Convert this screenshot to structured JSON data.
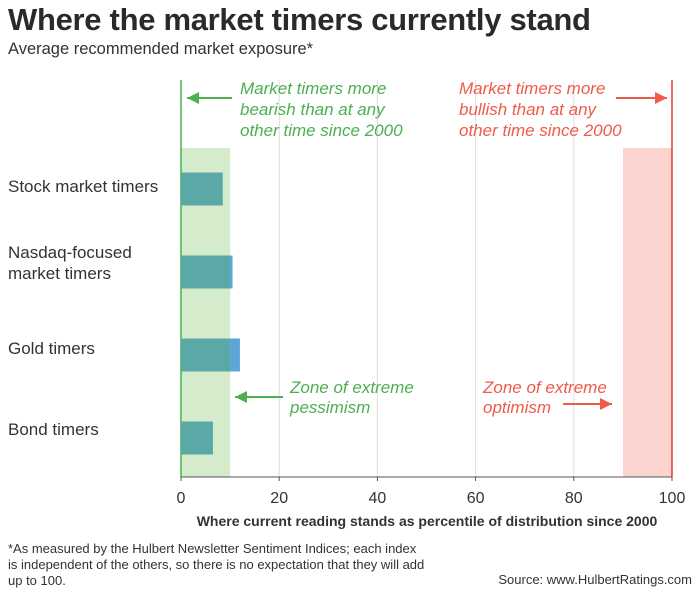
{
  "header": {
    "title": "Where the market timers currently stand",
    "subtitle": "Average recommended market exposure*"
  },
  "chart_data": {
    "type": "bar",
    "orientation": "horizontal",
    "categories": [
      "Stock market timers",
      "Nasdaq-focused\nmarket timers",
      "Gold timers",
      "Bond timers"
    ],
    "values": [
      8.5,
      10.5,
      12,
      6.5
    ],
    "xlabel": "Where current reading stands as percentile of distribution since 2000",
    "xlim": [
      0,
      100
    ],
    "xticks": [
      0,
      20,
      40,
      60,
      80,
      100
    ],
    "grid": "vertical",
    "zones": [
      {
        "range": [
          0,
          10
        ],
        "color": "#d4eccb",
        "label": "Zone of extreme\npessimism",
        "label_color": "#4caf50"
      },
      {
        "range": [
          90,
          100
        ],
        "color": "#fbd3cf",
        "label": "Zone of extreme\noptimism",
        "label_color": "#f05a48"
      }
    ],
    "annotations": [
      {
        "text": "Market timers more\nbearish than at any\nother time since 2000",
        "color": "#4caf50",
        "arrow": "left"
      },
      {
        "text": "Market timers more\nbullish than at any\nother time since 2000",
        "color": "#f05a48",
        "arrow": "right"
      }
    ],
    "colors": {
      "bar": "#5aa9a6",
      "bar_highlight": "#5ba6d6",
      "green_line": "#4caf50",
      "red_line": "#e53935",
      "grid": "#dddddd",
      "axis": "#555555"
    }
  },
  "footer": {
    "footnote": "*As measured by the Hulbert Newsletter Sentiment Indices; each index is independent of the others, so there is no expectation that they will add up to 100.",
    "source": "Source: www.HulbertRatings.com"
  }
}
